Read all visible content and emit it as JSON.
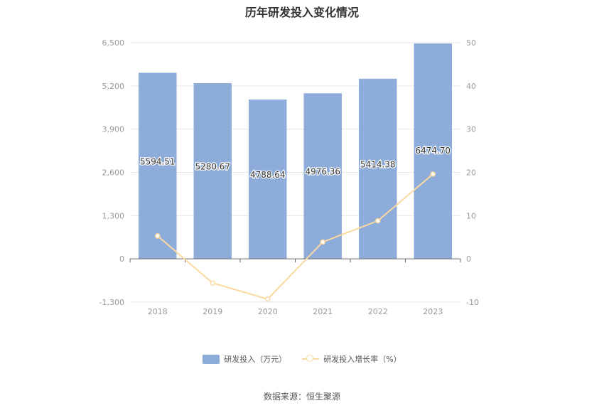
{
  "colors": {
    "bar": "#8eacda",
    "line": "#fbd9a0",
    "axis": "#999999",
    "grid": "#e6e6e6",
    "label": "#333333"
  },
  "footer": {
    "source": "数据来源：恒生聚源"
  },
  "chart_data": {
    "type": "bar",
    "title": "历年研发投入变化情况",
    "categories": [
      "2018",
      "2019",
      "2020",
      "2021",
      "2022",
      "2023"
    ],
    "series": [
      {
        "name": "研发投入（万元）",
        "kind": "bar",
        "axis": "left",
        "values": [
          5594.51,
          5280.67,
          4788.64,
          4976.36,
          5414.38,
          6474.7
        ],
        "labels": [
          "5594.51",
          "5280.67",
          "4788.64",
          "4976.36",
          "5414.38",
          "6474.70"
        ]
      },
      {
        "name": "研发投入增长率（%）",
        "kind": "line",
        "axis": "right",
        "values": [
          5.3,
          -5.6,
          -9.3,
          3.9,
          8.8,
          19.6
        ]
      }
    ],
    "y_left": {
      "ylim": [
        -1300,
        6500
      ],
      "ticks": [
        "-1,300",
        "0",
        "1,300",
        "2,600",
        "3,900",
        "5,200",
        "6,500"
      ]
    },
    "y_right": {
      "ylim": [
        -10,
        50
      ],
      "ticks": [
        "-10",
        "0",
        "10",
        "20",
        "30",
        "40",
        "50"
      ]
    },
    "grid": true,
    "legend_position": "bottom"
  }
}
